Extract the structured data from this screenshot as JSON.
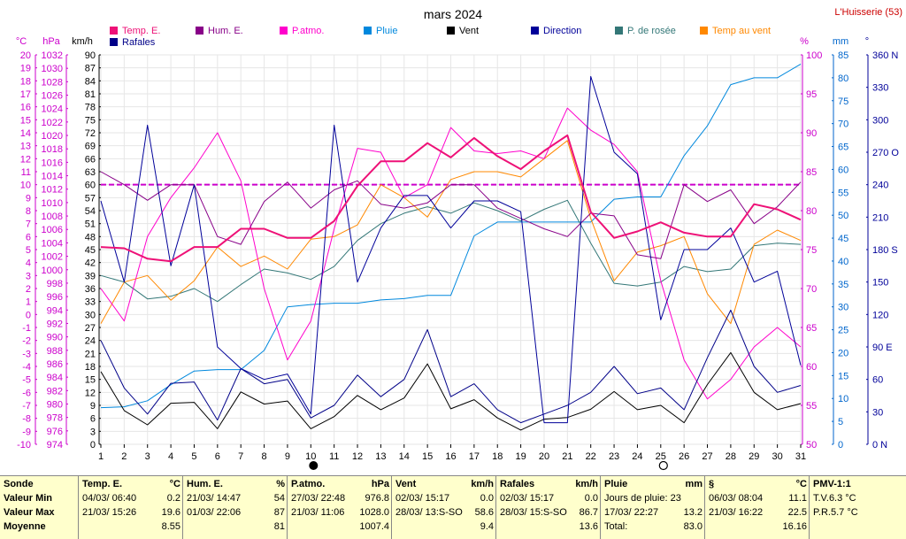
{
  "station": "L'Huisserie (53)",
  "chart_data": {
    "type": "line",
    "title": "mars 2024",
    "x": [
      1,
      2,
      3,
      4,
      5,
      6,
      7,
      8,
      9,
      10,
      11,
      12,
      13,
      14,
      15,
      16,
      17,
      18,
      19,
      20,
      21,
      22,
      23,
      24,
      25,
      26,
      27,
      28,
      29,
      30,
      31
    ],
    "left_axes": [
      {
        "unit": "°C",
        "min": -10,
        "max": 20,
        "step": 1,
        "color": "#cc00cc"
      },
      {
        "unit": "hPa",
        "min": 974,
        "max": 1032,
        "step": 2,
        "color": "#cc00cc"
      },
      {
        "unit": "km/h",
        "min": 0,
        "max": 90,
        "step": 3,
        "color": "#000000"
      }
    ],
    "right_axes": [
      {
        "unit": "%",
        "min": 50,
        "max": 100,
        "step": 5,
        "color": "#cc00cc"
      },
      {
        "unit": "mm",
        "min": 0,
        "max": 85,
        "step": 5,
        "color": "#0066cc"
      },
      {
        "unit": "°",
        "min": 0,
        "max": 360,
        "step": 30,
        "color": "#000099"
      }
    ],
    "compass_labels": {
      "360": "N",
      "270": "O",
      "180": "S",
      "90": "E",
      "0": "N"
    },
    "mean_line": {
      "axis": "left0",
      "value": 10,
      "color": "#cc00cc"
    },
    "moon_markers": [
      {
        "day": 10,
        "phase": "new"
      },
      {
        "day": 25,
        "phase": "full"
      }
    ],
    "series": [
      {
        "name": "Temp. E.",
        "axis": "left0",
        "color": "#ee1177",
        "width": 2,
        "values": [
          5.2,
          5.1,
          4.3,
          4.1,
          5.2,
          5.2,
          6.6,
          6.6,
          5.9,
          5.9,
          7.2,
          9.9,
          11.8,
          11.8,
          13.2,
          12.1,
          13.6,
          12.2,
          11.2,
          12.6,
          13.8,
          7.9,
          5.9,
          6.4,
          7.1,
          6.3,
          6.0,
          6.0,
          8.5,
          8.1,
          7.3
        ]
      },
      {
        "name": "Hum. E.",
        "axis": "left0",
        "color": "#880088",
        "width": 1,
        "values": [
          11.0,
          10.0,
          8.8,
          10.0,
          10.0,
          6.0,
          5.4,
          8.7,
          10.2,
          8.2,
          9.6,
          10.3,
          8.5,
          8.2,
          8.6,
          10.0,
          10.0,
          8.2,
          7.4,
          6.6,
          6.0,
          7.8,
          7.6,
          4.6,
          4.3,
          10.0,
          8.7,
          9.6,
          7.0,
          8.3,
          10.2
        ]
      },
      {
        "name": "P.atmo.",
        "axis": "left0",
        "color": "#ff00cc",
        "width": 1,
        "values": [
          2.0,
          -0.5,
          6.0,
          9.0,
          11.3,
          14.0,
          10.3,
          2.0,
          -3.5,
          -0.5,
          6.6,
          12.8,
          12.5,
          9.0,
          10.0,
          14.4,
          12.6,
          12.4,
          12.6,
          12.0,
          15.9,
          14.2,
          13.1,
          11.0,
          2.6,
          -3.5,
          -6.5,
          -5.0,
          -2.5,
          -1.0,
          -2.5
        ]
      },
      {
        "name": "Pluie",
        "axis": "right1",
        "color": "#0088dd",
        "width": 1,
        "values": [
          8.0,
          8.2,
          9.5,
          13.0,
          16.0,
          16.3,
          16.3,
          20.5,
          30.0,
          30.5,
          30.8,
          30.8,
          31.5,
          31.8,
          32.5,
          32.5,
          45.5,
          48.5,
          48.5,
          48.5,
          48.5,
          48.5,
          53.5,
          54.0,
          54.0,
          63.0,
          69.5,
          78.5,
          80.0,
          80.0,
          83.0
        ]
      },
      {
        "name": "Vent",
        "axis": "left2",
        "color": "#000000",
        "width": 1,
        "values": [
          16.8,
          7.8,
          4.5,
          9.5,
          9.7,
          3.6,
          12.1,
          9.3,
          10.0,
          3.6,
          6.4,
          11.3,
          8.0,
          10.7,
          18.6,
          8.2,
          10.3,
          6.1,
          3.3,
          5.8,
          6.2,
          8.1,
          12.2,
          8.0,
          9.0,
          5.0,
          13.8,
          21.2,
          12.0,
          8.0,
          9.4
        ]
      },
      {
        "name": "Direction",
        "axis": "right2",
        "color": "#000099",
        "width": 1,
        "values": [
          225,
          150,
          295,
          165,
          240,
          90,
          70,
          60,
          65,
          28,
          295,
          150,
          200,
          230,
          230,
          200,
          225,
          225,
          215,
          20,
          20,
          340,
          270,
          250,
          115,
          180,
          180,
          200,
          150,
          160,
          73
        ]
      },
      {
        "name": "P. de rosée",
        "axis": "left0",
        "color": "#337777",
        "width": 1,
        "values": [
          3.0,
          2.5,
          1.2,
          1.4,
          2.0,
          1.0,
          2.3,
          3.5,
          3.2,
          2.7,
          3.7,
          5.7,
          7.0,
          7.8,
          8.3,
          7.8,
          8.6,
          8.0,
          7.2,
          8.1,
          8.8,
          5.5,
          2.4,
          2.2,
          2.5,
          3.7,
          3.3,
          3.5,
          5.3,
          5.5,
          5.4
        ]
      },
      {
        "name": "Temp au vent",
        "axis": "left0",
        "color": "#ff8800",
        "width": 1,
        "values": [
          -0.7,
          2.5,
          3.0,
          1.1,
          2.6,
          5.2,
          3.7,
          4.5,
          3.5,
          5.8,
          6.0,
          6.9,
          10.0,
          9.0,
          7.5,
          10.4,
          11.0,
          11.0,
          10.6,
          12.0,
          13.4,
          7.4,
          2.6,
          4.8,
          5.3,
          6.0,
          1.6,
          -0.7,
          5.4,
          6.5,
          5.7
        ]
      },
      {
        "name": "Rafales",
        "axis": "left2",
        "color": "#000088",
        "width": 1,
        "values": [
          24.0,
          13.0,
          7.0,
          14.1,
          14.4,
          5.6,
          17.5,
          14.0,
          15.0,
          6.1,
          9.0,
          16.0,
          11.0,
          15.0,
          26.5,
          11.0,
          14.0,
          8.0,
          5.0,
          7.0,
          9.0,
          12.0,
          18.0,
          11.7,
          13.0,
          8.0,
          20.0,
          31.0,
          18.0,
          12.0,
          13.6
        ]
      }
    ]
  },
  "stats": {
    "sonde": {
      "title": "Sonde",
      "rows": [
        "Valeur Min",
        "Valeur Max",
        "Moyenne"
      ]
    },
    "temp": {
      "title": "Temp. E.",
      "unit": "°C",
      "min_date": "04/03/  06:40",
      "min_val": "0.2",
      "max_date": "21/03/  15:26",
      "max_val": "19.6",
      "avg": "8.55"
    },
    "hum": {
      "title": "Hum. E.",
      "unit": "%",
      "min_date": "21/03/  14:47",
      "min_val": "54",
      "max_date": "01/03/  22:06",
      "max_val": "87",
      "avg": "81"
    },
    "patmo": {
      "title": "P.atmo.",
      "unit": "hPa",
      "min_date": "27/03/  22:48",
      "min_val": "976.8",
      "max_date": "21/03/  11:06",
      "max_val": "1028.0",
      "avg": "1007.4"
    },
    "vent": {
      "title": "Vent",
      "unit": "km/h",
      "min_date": "02/03/  15:17",
      "min_val": "0.0",
      "max_date": "28/03/  13:S-SO",
      "max_val": "58.6",
      "avg": "9.4"
    },
    "rafales": {
      "title": "Rafales",
      "unit": "km/h",
      "min_date": "02/03/  15:17",
      "min_val": "0.0",
      "max_date": "28/03/  15:S-SO",
      "max_val": "86.7",
      "avg": "13.6"
    },
    "pluie": {
      "title": "Pluie",
      "unit": "mm",
      "row1_label": "Jours de pluie: 23",
      "row2_date": "17/03/  22:27",
      "row2_val": "13.2",
      "row3_label": "Total:",
      "row3_val": "83.0"
    },
    "dew": {
      "title": "§",
      "unit": "°C",
      "min_date": "06/03/  08:04",
      "min_val": "11.1",
      "max_date": "21/03/  16:22",
      "max_val": "22.5",
      "avg": "16.16"
    },
    "pmv": {
      "title": "PMV-1:1",
      "line1": "T.V.6.3 °C",
      "line2": "P.R.5.7 °C"
    }
  }
}
